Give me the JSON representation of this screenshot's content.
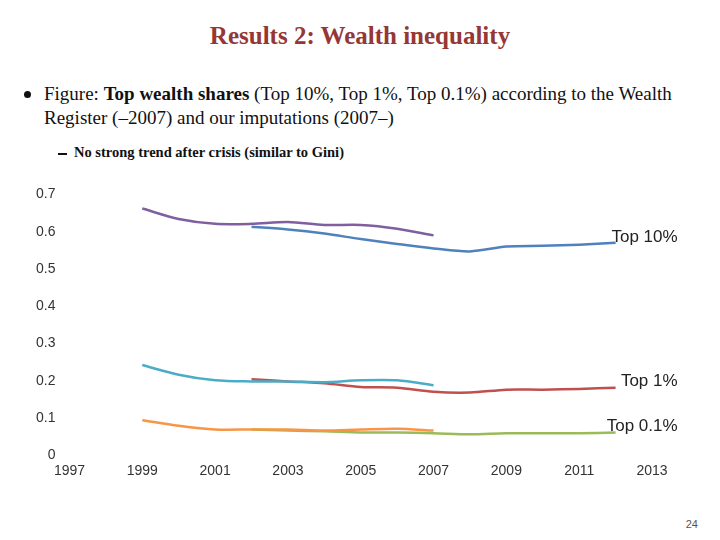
{
  "slide": {
    "title": "Results 2: Wealth inequality",
    "bullet": [
      {
        "text": "Figure: ",
        "bold": false
      },
      {
        "text": "Top wealth shares",
        "bold": true
      },
      {
        "text": " (Top 10%, Top 1%, Top 0.1%) according to the Wealth Register (–2007) and our imputations (2007–)",
        "bold": false
      }
    ],
    "sub_bullet": "No strong trend after crisis (similar to Gini)",
    "page_number": 24
  },
  "chart_data": {
    "type": "line",
    "x": [
      1999,
      2000,
      2001,
      2002,
      2003,
      2004,
      2005,
      2006,
      2007,
      2008,
      2009,
      2010,
      2011,
      2012
    ],
    "series": [
      {
        "color": "#7f5fa0",
        "values": [
          0.662,
          0.634,
          0.621,
          0.621,
          0.626,
          0.618,
          0.618,
          0.608,
          0.59,
          null,
          null,
          null,
          null,
          null
        ]
      },
      {
        "color": "#4f81bd",
        "label": "Top 10%",
        "values": [
          null,
          null,
          null,
          0.613,
          0.606,
          0.595,
          0.58,
          0.567,
          0.555,
          0.547,
          0.56,
          0.562,
          0.565,
          0.57
        ]
      },
      {
        "color": "#4bacc6",
        "values": [
          0.242,
          0.216,
          0.201,
          0.198,
          0.198,
          0.196,
          0.201,
          0.201,
          0.188,
          null,
          null,
          null,
          null,
          null
        ]
      },
      {
        "color": "#c0504d",
        "label": "Top 1%",
        "values": [
          null,
          null,
          null,
          0.204,
          0.198,
          0.193,
          0.183,
          0.181,
          0.17,
          0.168,
          0.176,
          0.176,
          0.178,
          0.181
        ]
      },
      {
        "color": "#f79646",
        "values": [
          0.094,
          0.079,
          0.069,
          0.069,
          0.069,
          0.066,
          0.069,
          0.071,
          0.066,
          null,
          null,
          null,
          null,
          null
        ]
      },
      {
        "color": "#9bbb59",
        "label": "Top 0.1%",
        "values": [
          null,
          null,
          null,
          0.069,
          0.066,
          0.064,
          0.061,
          0.061,
          0.059,
          0.056,
          0.059,
          0.059,
          0.059,
          0.061
        ]
      }
    ],
    "xlim": [
      1997,
      2013
    ],
    "xticks": [
      1997,
      1999,
      2001,
      2003,
      2005,
      2007,
      2009,
      2011,
      2013
    ],
    "ylim": [
      0,
      0.7
    ],
    "yticks": [
      0,
      0.1,
      0.2,
      0.3,
      0.4,
      0.5,
      0.6,
      0.7
    ],
    "grid": false
  }
}
